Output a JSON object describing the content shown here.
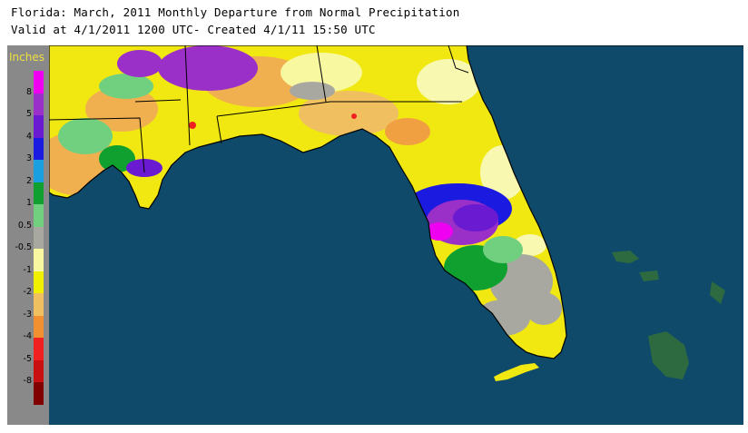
{
  "title_line1": "Florida: March, 2011 Monthly Departure from Normal Precipitation",
  "title_line2": "Valid at 4/1/2011 1200 UTC- Created 4/1/11 15:50 UTC",
  "legend": {
    "units": "Inches",
    "entries": [
      {
        "label": "8",
        "color": "#f000f0"
      },
      {
        "label": "5",
        "color": "#9a30c8"
      },
      {
        "label": "4",
        "color": "#6a1ad0"
      },
      {
        "label": "3",
        "color": "#1a1ae0"
      },
      {
        "label": "2",
        "color": "#1aa0e0"
      },
      {
        "label": "1",
        "color": "#10a030"
      },
      {
        "label": "0.5",
        "color": "#70d080"
      },
      {
        "label": "-0.5",
        "color": "#a8a8a0"
      },
      {
        "label": "-1",
        "color": "#f8f8a0"
      },
      {
        "label": "-2",
        "color": "#f0f000"
      },
      {
        "label": "-3",
        "color": "#f0c060"
      },
      {
        "label": "-4",
        "color": "#f09030"
      },
      {
        "label": "-5",
        "color": "#f02020"
      },
      {
        "label": "-8",
        "color": "#c81010"
      },
      {
        "label": "",
        "color": "#800000"
      }
    ]
  },
  "colors": {
    "water": "#0f4a6a",
    "border": "#000000"
  }
}
